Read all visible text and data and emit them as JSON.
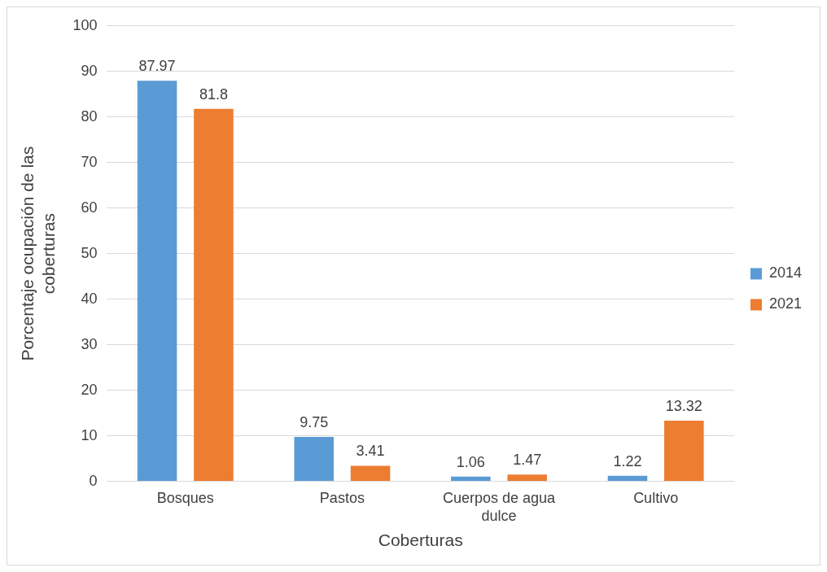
{
  "chart_data": {
    "type": "bar",
    "xlabel": "Coberturas",
    "ylabel": "Porcentaje ocupación de las coberturas",
    "categories": [
      "Bosques",
      "Pastos",
      "Cuerpos de agua dulce",
      "Cultivo"
    ],
    "series": [
      {
        "name": "2014",
        "color": "#5b9bd5",
        "values": [
          87.97,
          9.75,
          1.06,
          1.22
        ]
      },
      {
        "name": "2021",
        "color": "#ed7d31",
        "values": [
          81.8,
          3.41,
          1.47,
          13.32
        ]
      }
    ],
    "ylim": [
      0,
      100
    ],
    "yticks": [
      0,
      10,
      20,
      30,
      40,
      50,
      60,
      70,
      80,
      90,
      100
    ],
    "grid": "y",
    "legend": "right",
    "data_labels": true
  }
}
